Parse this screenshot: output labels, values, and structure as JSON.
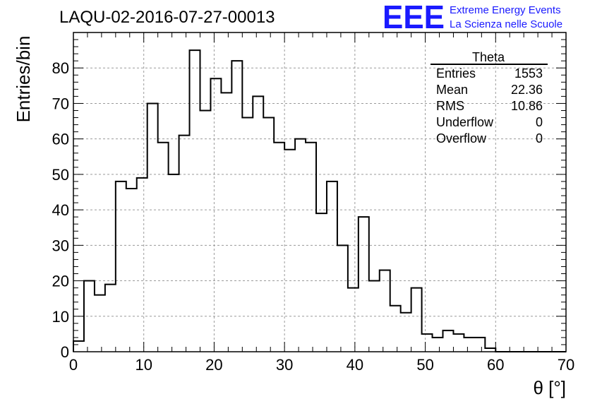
{
  "chart_data": {
    "type": "histogram",
    "title": "LAQU-02-2016-07-27-00013",
    "xlabel": "θ [°]",
    "ylabel": "Entries/bin",
    "xlim": [
      0,
      70
    ],
    "ylim": [
      0,
      90
    ],
    "x_ticks": [
      "0",
      "10",
      "20",
      "30",
      "40",
      "50",
      "60",
      "70"
    ],
    "y_ticks": [
      "0",
      "10",
      "20",
      "30",
      "40",
      "50",
      "60",
      "70",
      "80"
    ],
    "grid": true,
    "bin_width": 1.5,
    "bin_start": 0,
    "values": [
      3,
      20,
      16,
      19,
      48,
      46,
      49,
      70,
      59,
      50,
      61,
      85,
      68,
      77,
      73,
      82,
      66,
      72,
      66,
      59,
      57,
      60,
      59,
      39,
      48,
      30,
      18,
      38,
      20,
      23,
      13,
      11,
      18,
      5,
      4,
      6,
      5,
      4,
      4,
      1,
      0,
      0,
      0,
      0,
      0,
      0,
      0
    ]
  },
  "stats": {
    "name": "Theta",
    "rows": [
      {
        "label": "Entries",
        "value": "1553"
      },
      {
        "label": "Mean",
        "value": "22.36"
      },
      {
        "label": "RMS",
        "value": "10.86"
      },
      {
        "label": "Underflow",
        "value": "0"
      },
      {
        "label": "Overflow",
        "value": "0"
      }
    ]
  },
  "logo": {
    "mark": "EEE",
    "line1": "Extreme Energy Events",
    "line2": "La Scienza nelle Scuole",
    "color": "#1a1aff"
  }
}
